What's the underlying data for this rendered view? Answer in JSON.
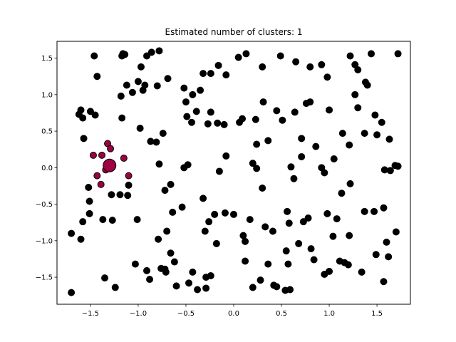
{
  "chart_data": {
    "type": "scatter",
    "title": "Estimated number of clusters: 1",
    "xlabel": "",
    "ylabel": "",
    "xlim": [
      -1.85,
      1.85
    ],
    "ylim": [
      -1.87,
      1.73
    ],
    "xticks": [
      -1.5,
      -1.0,
      -0.5,
      0.0,
      0.5,
      1.0,
      1.5
    ],
    "xtick_labels": [
      "−1.5",
      "−1.0",
      "−0.5",
      "0.0",
      "0.5",
      "1.0",
      "1.5"
    ],
    "yticks": [
      -1.5,
      -1.0,
      -0.5,
      0.0,
      0.5,
      1.0,
      1.5
    ],
    "ytick_labels": [
      "−1.5",
      "−1.0",
      "−0.5",
      "0.0",
      "0.5",
      "1.0",
      "1.5"
    ],
    "grid": false,
    "colors": {
      "cluster": "#9e0142",
      "noise": "#000000",
      "edge": "#000000"
    },
    "series": [
      {
        "name": "",
        "color": "#9e0142",
        "points": [
          [
            -1.32,
            0.33
          ],
          [
            -1.47,
            0.17
          ],
          [
            -1.38,
            0.17
          ],
          [
            -1.29,
            0.26
          ],
          [
            -1.15,
            0.13
          ],
          [
            -1.1,
            -0.11
          ],
          [
            -1.43,
            -0.11
          ],
          [
            -1.39,
            -0.23
          ],
          [
            -1.34,
            -0.03
          ]
        ]
      },
      {
        "name": "",
        "color": "#9e0142",
        "marker_size": "large",
        "points": [
          [
            -1.3,
            0.03
          ]
        ]
      },
      {
        "name": "",
        "color": "#000000",
        "points": [
          [
            -1.46,
            1.53
          ],
          [
            -1.17,
            1.53
          ],
          [
            -1.14,
            1.55
          ],
          [
            -0.97,
            1.38
          ],
          [
            -0.91,
            1.53
          ],
          [
            -0.86,
            1.58
          ],
          [
            -0.78,
            1.6
          ],
          [
            -1.62,
            0.73
          ],
          [
            -1.6,
            0.79
          ],
          [
            -1.58,
            0.68
          ],
          [
            -1.5,
            0.77
          ],
          [
            -1.45,
            0.72
          ],
          [
            -1.57,
            0.4
          ],
          [
            -1.16,
            1.56
          ],
          [
            -1.12,
            1.13
          ],
          [
            -1.06,
            1.03
          ],
          [
            -1.0,
            1.18
          ],
          [
            -0.95,
            1.06
          ],
          [
            -0.93,
            1.13
          ],
          [
            -0.8,
            1.12
          ],
          [
            -0.69,
            1.22
          ],
          [
            -0.43,
            1.0
          ],
          [
            -0.5,
            0.9
          ],
          [
            -0.52,
            1.09
          ],
          [
            -0.35,
            1.06
          ],
          [
            -0.39,
            0.77
          ],
          [
            -0.49,
            0.7
          ],
          [
            -0.44,
            0.62
          ],
          [
            -0.27,
            0.6
          ],
          [
            -0.24,
            0.76
          ],
          [
            -0.17,
            0.61
          ],
          [
            -0.32,
            1.29
          ],
          [
            -0.24,
            1.29
          ],
          [
            -0.16,
            1.4
          ],
          [
            -0.08,
            1.27
          ],
          [
            0.05,
            1.51
          ],
          [
            0.13,
            1.56
          ],
          [
            0.3,
            1.38
          ],
          [
            0.49,
            1.53
          ],
          [
            0.65,
            1.45
          ],
          [
            0.8,
            1.38
          ],
          [
            0.92,
            1.41
          ],
          [
            0.98,
            1.24
          ],
          [
            1.22,
            1.53
          ],
          [
            1.27,
            1.41
          ],
          [
            1.3,
            1.34
          ],
          [
            1.44,
            1.56
          ],
          [
            1.72,
            1.56
          ],
          [
            1.38,
            1.17
          ],
          [
            1.4,
            1.13
          ],
          [
            1.27,
            1.0
          ],
          [
            1.3,
            0.82
          ],
          [
            1.48,
            0.72
          ],
          [
            1.55,
            0.62
          ],
          [
            1.37,
            0.47
          ],
          [
            1.5,
            0.45
          ],
          [
            1.63,
            0.39
          ],
          [
            1.69,
            0.03
          ],
          [
            1.72,
            0.02
          ],
          [
            1.58,
            -0.03
          ],
          [
            1.64,
            -0.04
          ],
          [
            1.14,
            0.47
          ],
          [
            1.21,
            0.31
          ],
          [
            1.05,
            0.12
          ],
          [
            0.92,
            0.0
          ],
          [
            0.95,
            -0.07
          ],
          [
            1.13,
            -0.35
          ],
          [
            1.22,
            -0.22
          ],
          [
            1.37,
            -0.6
          ],
          [
            1.47,
            -0.6
          ],
          [
            1.57,
            -0.55
          ],
          [
            1.7,
            -0.88
          ],
          [
            1.6,
            -1.02
          ],
          [
            1.49,
            -1.19
          ],
          [
            1.62,
            -1.22
          ],
          [
            1.57,
            -1.56
          ],
          [
            1.34,
            -1.43
          ],
          [
            1.2,
            -1.33
          ],
          [
            1.16,
            -1.3
          ],
          [
            1.11,
            -1.28
          ],
          [
            1.21,
            -0.93
          ],
          [
            1.08,
            -0.7
          ],
          [
            1.04,
            -0.94
          ],
          [
            0.98,
            -0.63
          ],
          [
            1.0,
            -1.42
          ],
          [
            0.95,
            -1.46
          ],
          [
            0.84,
            -1.26
          ],
          [
            0.81,
            -1.11
          ],
          [
            0.68,
            -1.04
          ],
          [
            0.78,
            -0.69
          ],
          [
            0.73,
            -0.74
          ],
          [
            0.56,
            -0.6
          ],
          [
            0.58,
            -0.76
          ],
          [
            0.41,
            -0.87
          ],
          [
            0.33,
            -0.81
          ],
          [
            0.55,
            -1.14
          ],
          [
            0.36,
            -1.32
          ],
          [
            0.57,
            -1.32
          ],
          [
            0.59,
            -1.67
          ],
          [
            0.45,
            -1.63
          ],
          [
            0.42,
            -1.61
          ],
          [
            0.28,
            -1.54
          ],
          [
            0.2,
            -1.64
          ],
          [
            0.12,
            -1.28
          ],
          [
            0.1,
            -0.93
          ],
          [
            0.12,
            -1.01
          ],
          [
            0.17,
            -0.71
          ],
          [
            0.0,
            -0.64
          ],
          [
            -0.09,
            -0.62
          ],
          [
            -0.2,
            -0.64
          ],
          [
            -0.26,
            -0.74
          ],
          [
            -0.3,
            -0.87
          ],
          [
            -0.32,
            -0.42
          ],
          [
            -0.54,
            -0.54
          ],
          [
            -0.64,
            -0.61
          ],
          [
            -0.7,
            -0.87
          ],
          [
            -0.79,
            -0.98
          ],
          [
            -0.66,
            -1.17
          ],
          [
            -0.72,
            -1.39
          ],
          [
            -0.71,
            -1.43
          ],
          [
            -0.76,
            -1.38
          ],
          [
            -0.88,
            -1.53
          ],
          [
            -0.91,
            -1.41
          ],
          [
            -1.03,
            -1.32
          ],
          [
            -1.01,
            -0.71
          ],
          [
            -0.62,
            -1.29
          ],
          [
            -0.6,
            -1.62
          ],
          [
            -0.47,
            -1.58
          ],
          [
            -0.43,
            -1.43
          ],
          [
            -0.29,
            -1.65
          ],
          [
            -0.29,
            -1.5
          ],
          [
            -0.24,
            -1.48
          ],
          [
            -0.18,
            -1.04
          ],
          [
            -0.74,
            0.47
          ],
          [
            -0.81,
            0.35
          ],
          [
            -0.72,
            -0.31
          ],
          [
            -0.66,
            -0.23
          ],
          [
            -0.78,
            0.05
          ],
          [
            -0.48,
            0.04
          ],
          [
            -0.52,
            0.0
          ],
          [
            -0.15,
            -0.05
          ],
          [
            -0.08,
            0.16
          ],
          [
            -0.1,
            0.59
          ],
          [
            0.06,
            0.62
          ],
          [
            0.09,
            0.67
          ],
          [
            0.23,
            0.66
          ],
          [
            0.31,
            0.9
          ],
          [
            0.36,
            0.37
          ],
          [
            0.45,
            0.78
          ],
          [
            0.51,
            0.65
          ],
          [
            0.64,
            0.76
          ],
          [
            0.76,
            0.88
          ],
          [
            0.8,
            0.9
          ],
          [
            1.0,
            0.79
          ],
          [
            0.86,
            0.29
          ],
          [
            0.71,
            0.4
          ],
          [
            0.71,
            0.15
          ],
          [
            0.6,
            0.01
          ],
          [
            0.63,
            -0.15
          ],
          [
            0.24,
            0.32
          ],
          [
            0.24,
            -0.01
          ],
          [
            0.2,
            0.06
          ],
          [
            0.3,
            -0.28
          ],
          [
            -1.52,
            -0.27
          ],
          [
            -1.51,
            -0.46
          ],
          [
            -1.51,
            -0.63
          ],
          [
            -1.58,
            -0.74
          ],
          [
            -1.7,
            -0.9
          ],
          [
            -1.6,
            -0.98
          ],
          [
            -1.37,
            -0.71
          ],
          [
            -1.27,
            -0.72
          ],
          [
            -1.28,
            -0.37
          ],
          [
            -1.19,
            -0.37
          ],
          [
            -1.11,
            -0.38
          ],
          [
            -1.1,
            -0.24
          ],
          [
            -1.35,
            -1.51
          ],
          [
            -1.24,
            -1.64
          ],
          [
            -1.7,
            -1.71
          ],
          [
            -1.17,
            0.68
          ],
          [
            -1.18,
            0.98
          ],
          [
            -1.43,
            1.25
          ],
          [
            -0.38,
            -1.67
          ],
          [
            0.54,
            -1.68
          ],
          [
            -0.98,
            0.54
          ],
          [
            -0.87,
            0.36
          ]
        ]
      }
    ]
  }
}
